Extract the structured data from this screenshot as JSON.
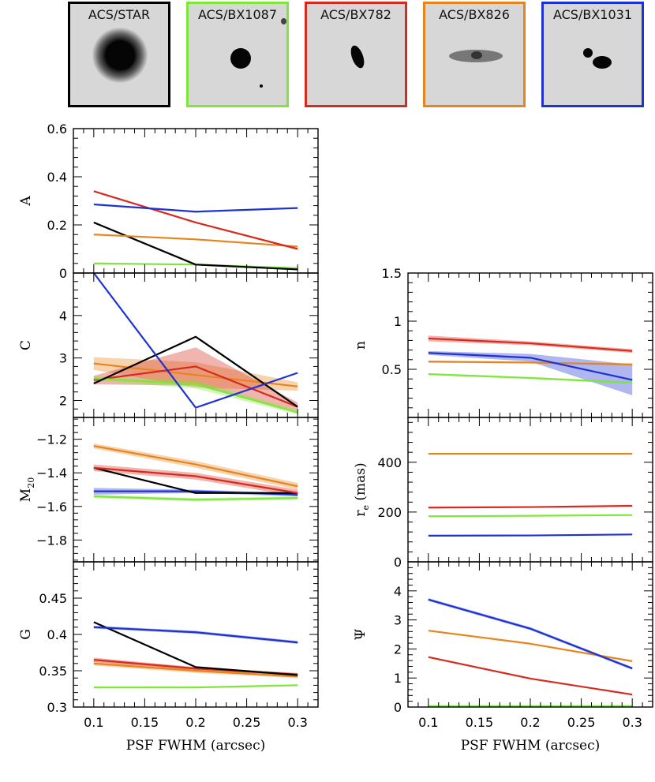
{
  "colors": {
    "STAR": "#000000",
    "BX1087": "#7fe63a",
    "BX782": "#d62a1e",
    "BX826": "#e6851e",
    "BX1031": "#1e32d2"
  },
  "thumbnails": [
    {
      "label": "ACS/STAR",
      "key": "STAR"
    },
    {
      "label": "ACS/BX1087",
      "key": "BX1087"
    },
    {
      "label": "ACS/BX782",
      "key": "BX782"
    },
    {
      "label": "ACS/BX826",
      "key": "BX826"
    },
    {
      "label": "ACS/BX1031",
      "key": "BX1031"
    }
  ],
  "chart_data": [
    {
      "type": "line",
      "panel": "A",
      "ylabel": "A",
      "x": [
        0.1,
        0.2,
        0.3
      ],
      "ylim": [
        0,
        0.6
      ],
      "yticks": [
        {
          "v": 0,
          "label": "0"
        },
        {
          "v": 0.2,
          "label": "0.2"
        },
        {
          "v": 0.4,
          "label": "0.4"
        },
        {
          "v": 0.6,
          "label": "0.6"
        }
      ],
      "series": [
        {
          "name": "BX1087",
          "values": [
            0.04,
            0.035,
            0.02
          ]
        },
        {
          "name": "STAR",
          "values": [
            0.21,
            0.035,
            0.015
          ]
        },
        {
          "name": "BX826",
          "values": [
            0.16,
            0.14,
            0.11
          ]
        },
        {
          "name": "BX782",
          "values": [
            0.34,
            0.21,
            0.1
          ]
        },
        {
          "name": "BX1031",
          "values": [
            0.285,
            0.255,
            0.27
          ]
        }
      ]
    },
    {
      "type": "line",
      "panel": "C",
      "ylabel": "C",
      "x": [
        0.1,
        0.2,
        0.3
      ],
      "ylim": [
        1.6,
        5.0
      ],
      "yticks": [
        {
          "v": 2,
          "label": "2"
        },
        {
          "v": 3,
          "label": "3"
        },
        {
          "v": 4,
          "label": "4"
        }
      ],
      "series": [
        {
          "name": "BX826",
          "values": [
            2.87,
            2.6,
            2.33
          ],
          "band": [
            0.15,
            0.3,
            0.1
          ]
        },
        {
          "name": "BX782",
          "values": [
            2.48,
            2.8,
            1.85
          ],
          "band": [
            0.1,
            0.45,
            0.1
          ]
        },
        {
          "name": "BX1087",
          "values": [
            2.52,
            2.38,
            1.72
          ],
          "band": [
            0.05,
            0.1,
            0.05
          ]
        },
        {
          "name": "STAR",
          "values": [
            2.4,
            3.5,
            1.85
          ]
        },
        {
          "name": "BX1031",
          "values": [
            5.0,
            1.83,
            2.65
          ]
        }
      ]
    },
    {
      "type": "line",
      "panel": "M20",
      "ylabel": "M20",
      "x": [
        0.1,
        0.2,
        0.3
      ],
      "ylim": [
        -1.93,
        -1.07
      ],
      "yticks": [
        {
          "v": -1.8,
          "label": "−1.8"
        },
        {
          "v": -1.6,
          "label": "−1.6"
        },
        {
          "v": -1.4,
          "label": "−1.4"
        },
        {
          "v": -1.2,
          "label": "−1.2"
        }
      ],
      "series": [
        {
          "name": "BX1087",
          "values": [
            -1.54,
            -1.56,
            -1.55
          ],
          "band": [
            0.01,
            0.01,
            0.01
          ]
        },
        {
          "name": "BX1031",
          "values": [
            -1.51,
            -1.51,
            -1.53
          ],
          "band": [
            0.02,
            0.01,
            0.01
          ]
        },
        {
          "name": "STAR",
          "values": [
            -1.37,
            -1.52,
            -1.52
          ]
        },
        {
          "name": "BX782",
          "values": [
            -1.37,
            -1.42,
            -1.52
          ],
          "band": [
            0.02,
            0.02,
            0.02
          ]
        },
        {
          "name": "BX826",
          "values": [
            -1.24,
            -1.35,
            -1.48
          ],
          "band": [
            0.015,
            0.02,
            0.02
          ]
        }
      ]
    },
    {
      "type": "line",
      "panel": "G",
      "ylabel": "G",
      "x": [
        0.1,
        0.2,
        0.3
      ],
      "ylim": [
        0.3,
        0.5
      ],
      "yticks": [
        {
          "v": 0.3,
          "label": "0.3"
        },
        {
          "v": 0.35,
          "label": "0.35"
        },
        {
          "v": 0.4,
          "label": "0.4"
        },
        {
          "v": 0.45,
          "label": "0.45"
        }
      ],
      "series": [
        {
          "name": "BX1087",
          "values": [
            0.327,
            0.327,
            0.33
          ]
        },
        {
          "name": "BX826",
          "values": [
            0.36,
            0.35,
            0.342
          ],
          "band": [
            0.003,
            0.003,
            0.002
          ]
        },
        {
          "name": "BX782",
          "values": [
            0.365,
            0.353,
            0.345
          ],
          "band": [
            0.003,
            0.002,
            0.002
          ]
        },
        {
          "name": "STAR",
          "values": [
            0.417,
            0.355,
            0.344
          ]
        },
        {
          "name": "BX1031",
          "values": [
            0.41,
            0.403,
            0.389
          ],
          "band": [
            0.002,
            0.002,
            0.002
          ]
        }
      ]
    },
    {
      "type": "line",
      "panel": "n",
      "ylabel": "n",
      "x": [
        0.1,
        0.2,
        0.3
      ],
      "ylim": [
        0,
        1.5
      ],
      "yticks": [
        {
          "v": 0.5,
          "label": "0.5"
        },
        {
          "v": 1,
          "label": "1"
        },
        {
          "v": 1.5,
          "label": "1.5"
        }
      ],
      "series": [
        {
          "name": "BX1087",
          "values": [
            0.45,
            0.41,
            0.36
          ],
          "band": [
            0.01,
            0.01,
            0.01
          ]
        },
        {
          "name": "BX826",
          "values": [
            0.58,
            0.57,
            0.55
          ],
          "band": [
            0.01,
            0.01,
            0.01
          ]
        },
        {
          "name": "BX1031",
          "values": [
            0.67,
            0.62,
            0.39
          ],
          "band": [
            0.02,
            0.04,
            0.16
          ]
        },
        {
          "name": "BX782",
          "values": [
            0.82,
            0.77,
            0.69
          ],
          "band": [
            0.03,
            0.02,
            0.02
          ]
        }
      ]
    },
    {
      "type": "line",
      "panel": "re",
      "ylabel": "re (mas)",
      "ylabel_main": "r",
      "ylabel_sub": "e",
      "ylabel_rest": " (mas)",
      "x": [
        0.1,
        0.2,
        0.3
      ],
      "ylim": [
        0,
        580
      ],
      "yticks": [
        {
          "v": 0,
          "label": "0"
        },
        {
          "v": 200,
          "label": "200"
        },
        {
          "v": 400,
          "label": "400"
        }
      ],
      "series": [
        {
          "name": "BX1031",
          "values": [
            105,
            106,
            110
          ]
        },
        {
          "name": "BX1087",
          "values": [
            183,
            185,
            188
          ]
        },
        {
          "name": "BX782",
          "values": [
            218,
            220,
            225
          ]
        },
        {
          "name": "BX826",
          "values": [
            434,
            434,
            434
          ]
        }
      ]
    },
    {
      "type": "line",
      "panel": "Psi",
      "ylabel": "Ψ",
      "x": [
        0.1,
        0.2,
        0.3
      ],
      "ylim": [
        0,
        5
      ],
      "yticks": [
        {
          "v": 0,
          "label": "0"
        },
        {
          "v": 1,
          "label": "1"
        },
        {
          "v": 2,
          "label": "2"
        },
        {
          "v": 3,
          "label": "3"
        },
        {
          "v": 4,
          "label": "4"
        }
      ],
      "series": [
        {
          "name": "BX1087",
          "values": [
            0.03,
            0.03,
            0.03
          ]
        },
        {
          "name": "BX782",
          "values": [
            1.72,
            0.98,
            0.43
          ]
        },
        {
          "name": "BX826",
          "values": [
            2.63,
            2.18,
            1.58
          ]
        },
        {
          "name": "BX1031",
          "values": [
            3.7,
            2.7,
            1.33
          ],
          "band": [
            0.05,
            0.05,
            0.05
          ]
        }
      ]
    }
  ],
  "xaxis": {
    "title": "PSF FWHM (arcsec)",
    "xlim": [
      0.08,
      0.32
    ],
    "ticks": [
      {
        "v": 0.1,
        "label": "0.1"
      },
      {
        "v": 0.15,
        "label": "0.15"
      },
      {
        "v": 0.2,
        "label": "0.2"
      },
      {
        "v": 0.25,
        "label": "0.25"
      },
      {
        "v": 0.3,
        "label": "0.3"
      }
    ]
  }
}
